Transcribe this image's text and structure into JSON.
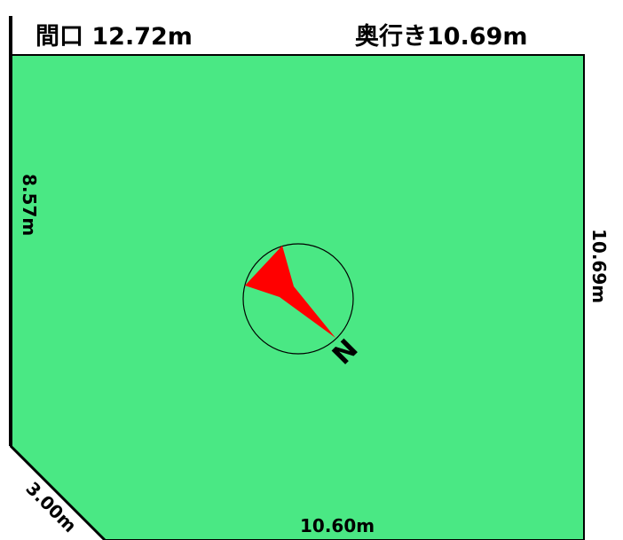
{
  "labels": {
    "frontage": "間口 12.72m",
    "depth": "奥行き10.69m",
    "left_side": "8.57m",
    "right_side": "10.69m",
    "corner_cut": "3.00m",
    "bottom_side": "10.60m",
    "north_marker": "N"
  },
  "colors": {
    "lot_fill": "#4ae884",
    "outline": "#000000",
    "arrow": "#ff0000",
    "compass_ring": "#000000"
  }
}
